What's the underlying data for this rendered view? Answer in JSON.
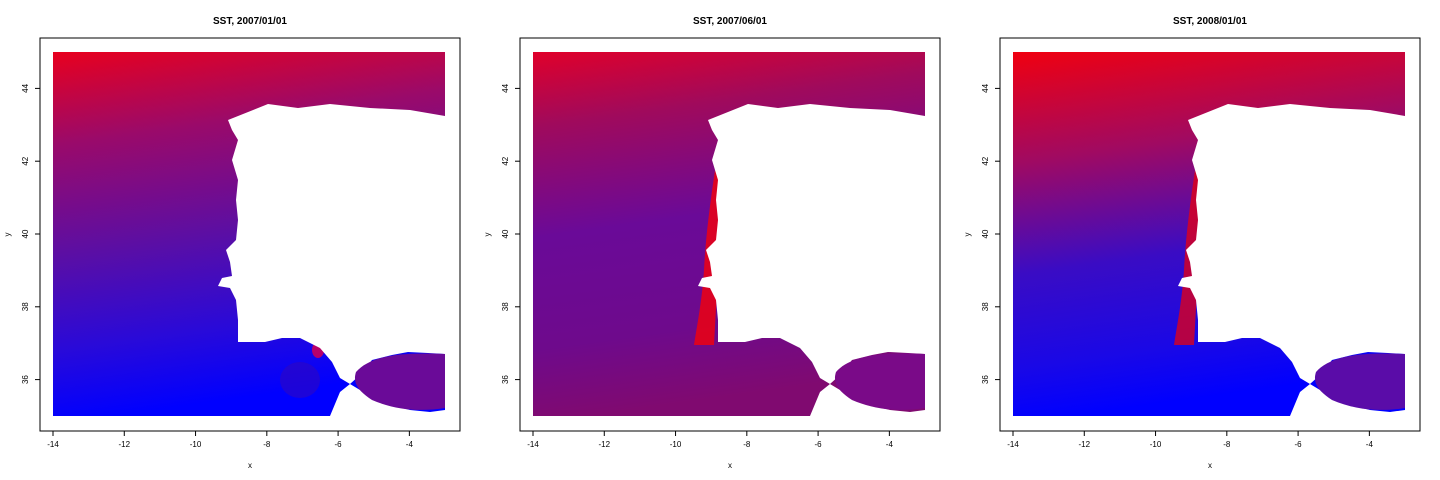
{
  "chart_data": [
    {
      "type": "heatmap",
      "title": "SST, 2007/01/01",
      "xlabel": "x",
      "ylabel": "y",
      "xlim": [
        -14,
        -3
      ],
      "ylim": [
        35,
        45
      ],
      "xticks": [
        "-14",
        "-12",
        "-10",
        "-8",
        "-6",
        "-4"
      ],
      "yticks": [
        "36",
        "38",
        "40",
        "42",
        "44"
      ],
      "color_scale": [
        "#0000ff",
        "#ff0000"
      ],
      "grid": false
    },
    {
      "type": "heatmap",
      "title": "SST, 2007/06/01",
      "xlabel": "x",
      "ylabel": "y",
      "xlim": [
        -14,
        -3
      ],
      "ylim": [
        35,
        45
      ],
      "xticks": [
        "-14",
        "-12",
        "-10",
        "-8",
        "-6",
        "-4"
      ],
      "yticks": [
        "36",
        "38",
        "40",
        "42",
        "44"
      ],
      "color_scale": [
        "#0000ff",
        "#ff0000"
      ],
      "grid": false
    },
    {
      "type": "heatmap",
      "title": "SST, 2008/01/01",
      "xlabel": "x",
      "ylabel": "y",
      "xlim": [
        -14,
        -3
      ],
      "ylim": [
        35,
        45
      ],
      "xticks": [
        "-14",
        "-12",
        "-10",
        "-8",
        "-6",
        "-4"
      ],
      "yticks": [
        "36",
        "38",
        "40",
        "42",
        "44"
      ],
      "color_scale": [
        "#0000ff",
        "#ff0000"
      ],
      "grid": false
    }
  ]
}
